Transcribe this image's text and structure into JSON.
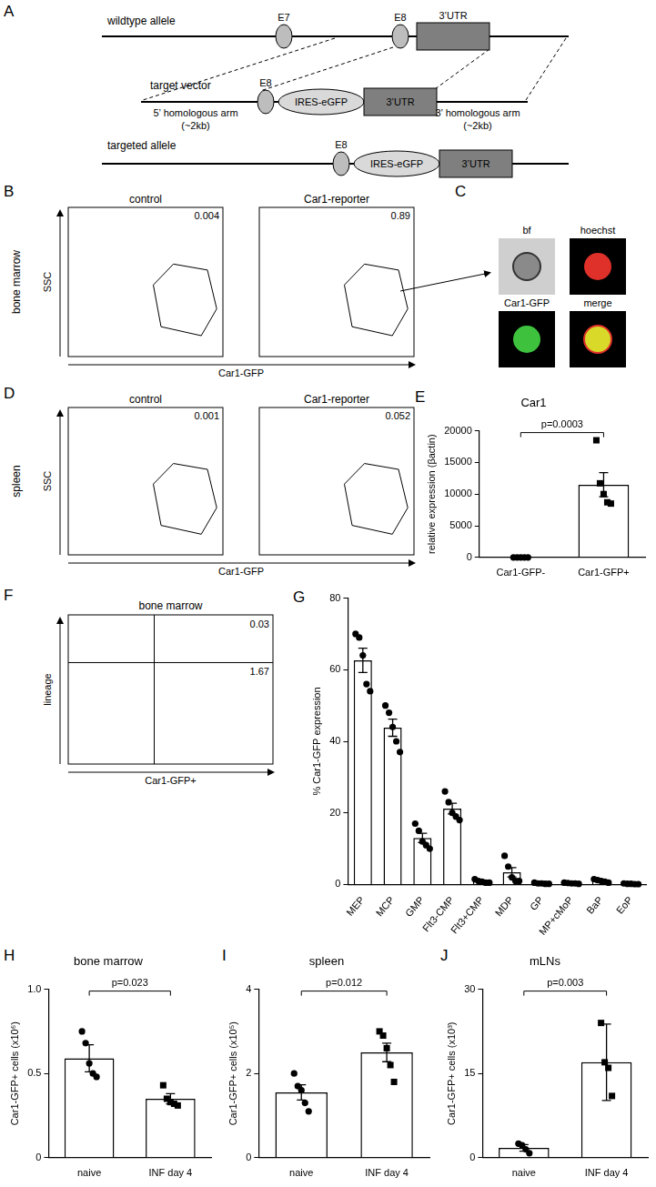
{
  "diagram": {
    "panel": "A",
    "rows": [
      {
        "label": "wildtype allele",
        "elements": [
          "E7",
          "E8",
          "3’UTR"
        ]
      },
      {
        "label": "target vector",
        "elements": [
          "E8",
          "IRES-eGFP",
          "3’UTR"
        ],
        "arms": [
          {
            "name": "5’ homologous arm",
            "size": "(~2kb)"
          },
          {
            "name": "3’ homologous arm",
            "size": "(~2kb)"
          }
        ]
      },
      {
        "label": "targeted allele",
        "elements": [
          "E8",
          "IRES-eGFP",
          "3’UTR"
        ]
      }
    ]
  },
  "flow_panels": [
    {
      "panel": "B",
      "tissue": "bone marrow",
      "y_label": "SSC",
      "x_label": "Car1-GFP",
      "plots": [
        {
          "title": "control",
          "gate_percent": 0.004
        },
        {
          "title": "Car1-reporter",
          "gate_percent": 0.89
        }
      ]
    },
    {
      "panel": "D",
      "tissue": "spleen",
      "y_label": "SSC",
      "x_label": "Car1-GFP",
      "plots": [
        {
          "title": "control",
          "gate_percent": 0.001
        },
        {
          "title": "Car1-reporter",
          "gate_percent": 0.052
        }
      ]
    }
  ],
  "imaging": {
    "panel": "C",
    "tiles": [
      "bf",
      "hoechst",
      "Car1-GFP",
      "merge"
    ]
  },
  "quadrant_plot": {
    "panel": "F",
    "title": "bone marrow",
    "y_label": "lineage",
    "x_label": "Car1-GFP+",
    "upper_right": 0.03,
    "lower_right": 1.67
  },
  "chart_data": [
    {
      "panel": "E",
      "type": "bar",
      "title": "Car1",
      "ylabel": "relative expression (βactin)",
      "categories": [
        "Car1-GFP-",
        "Car1-GFP+"
      ],
      "values": [
        0,
        11480
      ],
      "errors": [
        0,
        1900
      ],
      "points": [
        {
          "values": [
            0,
            0,
            0,
            0,
            0
          ],
          "marker": "circle"
        },
        {
          "values": [
            18500,
            11700,
            10000,
            8700,
            8500
          ],
          "marker": "square"
        }
      ],
      "color": "#ffffff",
      "ylim": [
        0,
        20000
      ],
      "yticks": [
        0,
        5000,
        10000,
        15000,
        20000
      ],
      "grid": false,
      "annotation": "p=0.0003"
    },
    {
      "panel": "G",
      "type": "bar",
      "ylabel": "% Car1-GFP expression",
      "categories": [
        "MEP",
        "MCP",
        "GMP",
        "Flt3-CMP",
        "Flt3+CMP",
        "MDP",
        "GP",
        "MP+cMoP",
        "BaP",
        "EoP"
      ],
      "values": [
        62.6,
        43.8,
        13,
        21.2,
        0.86,
        3.4,
        0.3,
        0.34,
        1,
        0.18
      ],
      "errors": [
        3.4,
        2.4,
        1.3,
        1.5,
        0.2,
        1.3,
        0.06,
        0.05,
        0.17,
        0.04
      ],
      "points": [
        {
          "values": [
            70,
            69,
            64,
            56,
            54
          ],
          "marker": "circle"
        },
        {
          "values": [
            50,
            48,
            44,
            40,
            37
          ],
          "marker": "circle"
        },
        {
          "values": [
            17,
            15,
            12,
            11,
            10
          ],
          "marker": "circle"
        },
        {
          "values": [
            26,
            23,
            20,
            19,
            18
          ],
          "marker": "circle"
        },
        {
          "values": [
            1.5,
            1,
            0.8,
            0.5,
            0.5
          ],
          "marker": "circle"
        },
        {
          "values": [
            8,
            5,
            2,
            1,
            1
          ],
          "marker": "circle"
        },
        {
          "values": [
            0.5,
            0.3,
            0.3,
            0.2,
            0.2
          ],
          "marker": "circle"
        },
        {
          "values": [
            0.5,
            0.4,
            0.3,
            0.3,
            0.2
          ],
          "marker": "circle"
        },
        {
          "values": [
            1.5,
            1.2,
            1,
            0.8,
            0.5
          ],
          "marker": "circle"
        },
        {
          "values": [
            0.3,
            0.2,
            0.2,
            0.1,
            0.1
          ],
          "marker": "circle"
        }
      ],
      "color": "#ffffff",
      "ylim": [
        0,
        80
      ],
      "yticks": [
        0,
        20,
        40,
        60,
        80
      ],
      "grid": false
    },
    {
      "panel": "H",
      "type": "bar",
      "title": "bone marrow",
      "ylabel": "Car1-GFP+ cells (x10⁶)",
      "categories": [
        "naive",
        "INF day 4"
      ],
      "values": [
        0.59,
        0.35
      ],
      "errors": [
        0.08,
        0.03
      ],
      "points": [
        {
          "values": [
            0.75,
            0.68,
            0.56,
            0.5,
            0.48
          ],
          "marker": "circle"
        },
        {
          "values": [
            0.43,
            0.35,
            0.33,
            0.32,
            0.31
          ],
          "marker": "square"
        }
      ],
      "color": "#ffffff",
      "ylim": [
        0,
        1
      ],
      "yticks": [
        0,
        0.5,
        {
          "value": 1,
          "label": "1.0"
        }
      ],
      "grid": false,
      "annotation": "p=0.023"
    },
    {
      "panel": "I",
      "type": "bar",
      "title": "spleen",
      "ylabel": "Car1-GFP+ cells (x10⁵)",
      "categories": [
        "naive",
        "INF day 4"
      ],
      "values": [
        1.55,
        2.5
      ],
      "errors": [
        0.18,
        0.22
      ],
      "points": [
        {
          "values": [
            2.0,
            1.7,
            1.6,
            1.3,
            1.1
          ],
          "marker": "circle"
        },
        {
          "values": [
            3.0,
            2.9,
            2.6,
            2.2,
            1.8
          ],
          "marker": "square"
        }
      ],
      "color": "#ffffff",
      "ylim": [
        0,
        4
      ],
      "yticks": [
        0,
        2,
        4
      ],
      "grid": false,
      "annotation": "p=0.012"
    },
    {
      "panel": "J",
      "type": "bar",
      "title": "mLNs",
      "ylabel": "Car1-GFP+ cells (x10³)",
      "categories": [
        "naive",
        "INF day 4"
      ],
      "values": [
        1.75,
        17
      ],
      "errors": [
        0.6,
        6.8
      ],
      "points": [
        {
          "values": [
            2.5,
            2.2,
            1.5,
            0.8
          ],
          "marker": "circle"
        },
        {
          "values": [
            24,
            17,
            16,
            11
          ],
          "marker": "square"
        }
      ],
      "color": "#ffffff",
      "ylim": [
        0,
        30
      ],
      "yticks": [
        0,
        15,
        30
      ],
      "grid": false,
      "annotation": "p=0.003"
    }
  ]
}
